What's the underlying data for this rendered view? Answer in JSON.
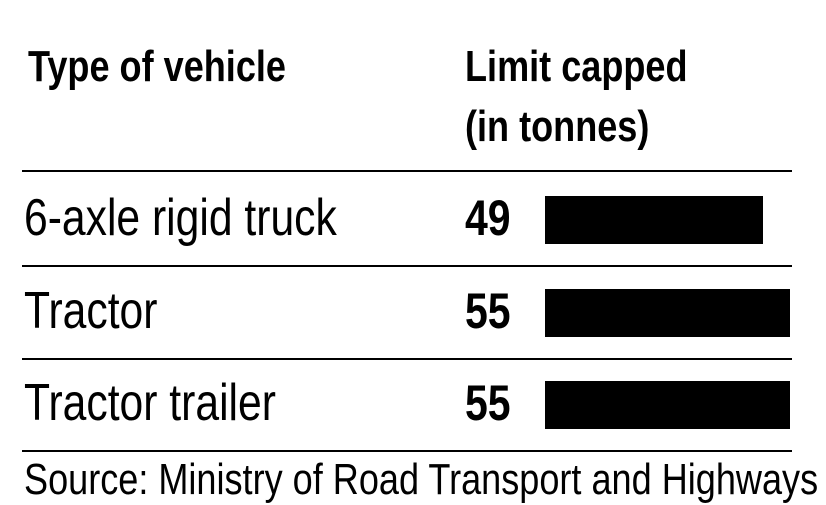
{
  "chart_data": {
    "type": "table",
    "columns": [
      "Type of vehicle",
      "Limit capped (in tonnes)"
    ],
    "header": {
      "col1": "Type of vehicle",
      "col2_line1": "Limit capped",
      "col2_line2": "(in tonnes)"
    },
    "rows": [
      {
        "label": "6-axle rigid truck",
        "value": 49
      },
      {
        "label": "Tractor",
        "value": 55
      },
      {
        "label": "Tractor trailer",
        "value": 55
      }
    ],
    "bar_color": "#000000",
    "xlim": [
      0,
      55
    ]
  },
  "source": "Source: Ministry of Road Transport and Highways"
}
